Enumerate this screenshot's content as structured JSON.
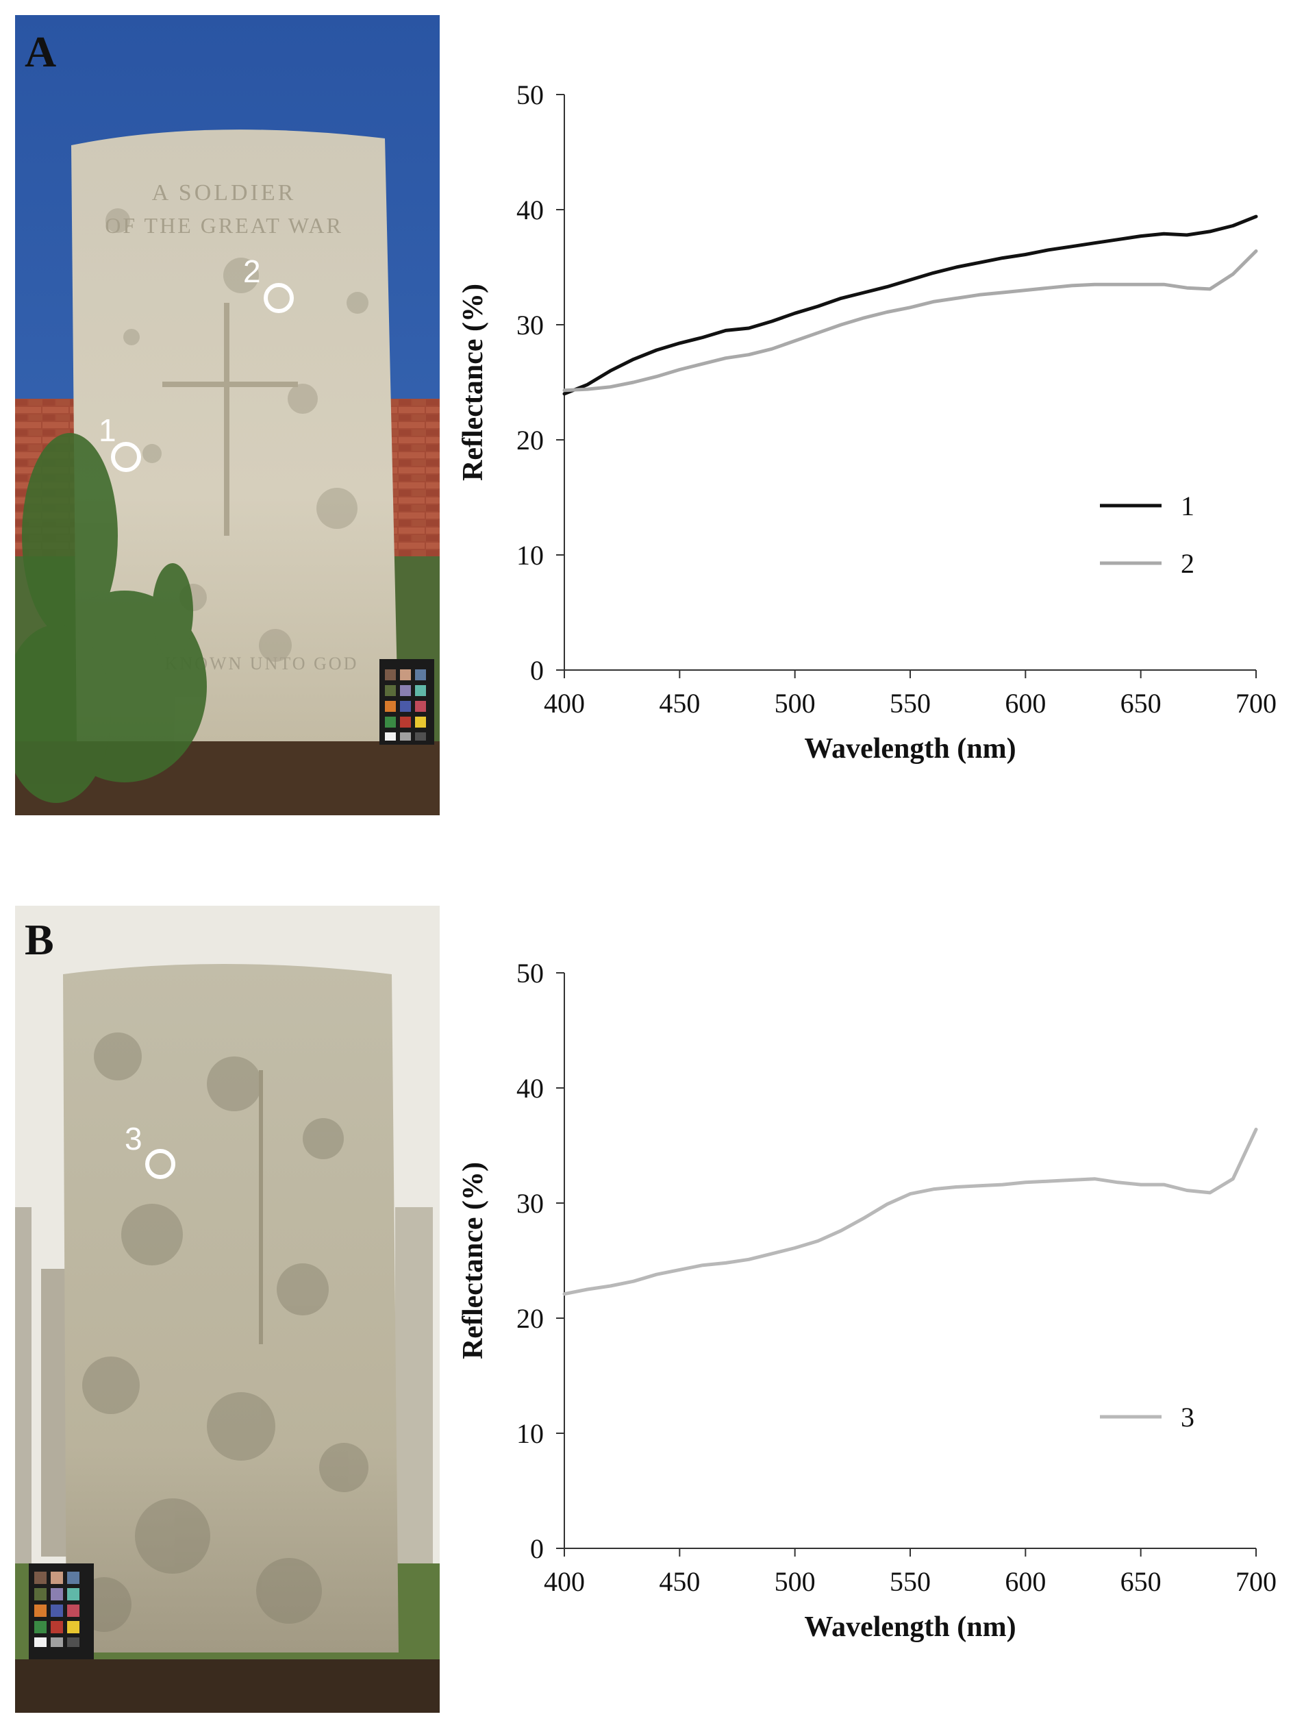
{
  "figure": {
    "panels": [
      {
        "label": "A",
        "photo": {
          "inscription": [
            "A SOLDIER",
            "OF THE GREAT WAR"
          ],
          "footer_inscription": "KNOWN UNTO GOD",
          "markers": [
            "1",
            "2"
          ],
          "sky_color": "#2f5aa6",
          "stone_color": "#cdc6b4",
          "wall_color": "#a24a36"
        }
      },
      {
        "label": "B",
        "photo": {
          "markers": [
            "3"
          ],
          "stone_color": "#bdb7a4",
          "background_color": "#e8e6df"
        }
      }
    ]
  },
  "chart_data": [
    {
      "type": "line",
      "xlabel": "Wavelength (nm)",
      "ylabel": "Reflectance (%)",
      "xlim": [
        400,
        700
      ],
      "ylim": [
        0,
        50
      ],
      "xticks": [
        "400",
        "450",
        "500",
        "550",
        "600",
        "650",
        "700"
      ],
      "yticks": [
        "0",
        "10",
        "20",
        "30",
        "40",
        "50"
      ],
      "legend_position": "lower-right",
      "grid": false,
      "series": [
        {
          "name": "1",
          "color": "#111111",
          "x": [
            400,
            410,
            420,
            430,
            440,
            450,
            460,
            470,
            480,
            490,
            500,
            510,
            520,
            530,
            540,
            550,
            560,
            570,
            580,
            590,
            600,
            610,
            620,
            630,
            640,
            650,
            660,
            670,
            680,
            690,
            700
          ],
          "y": [
            24.0,
            24.8,
            26.0,
            27.0,
            27.8,
            28.4,
            28.9,
            29.5,
            29.7,
            30.3,
            31.0,
            31.6,
            32.3,
            32.8,
            33.3,
            33.9,
            34.5,
            35.0,
            35.4,
            35.8,
            36.1,
            36.5,
            36.8,
            37.1,
            37.4,
            37.7,
            37.9,
            37.8,
            38.1,
            38.6,
            39.4
          ]
        },
        {
          "name": "2",
          "color": "#a9a9a9",
          "x": [
            400,
            410,
            420,
            430,
            440,
            450,
            460,
            470,
            480,
            490,
            500,
            510,
            520,
            530,
            540,
            550,
            560,
            570,
            580,
            590,
            600,
            610,
            620,
            630,
            640,
            650,
            660,
            670,
            680,
            690,
            700
          ],
          "y": [
            24.3,
            24.4,
            24.6,
            25.0,
            25.5,
            26.1,
            26.6,
            27.1,
            27.4,
            27.9,
            28.6,
            29.3,
            30.0,
            30.6,
            31.1,
            31.5,
            32.0,
            32.3,
            32.6,
            32.8,
            33.0,
            33.2,
            33.4,
            33.5,
            33.5,
            33.5,
            33.5,
            33.2,
            33.1,
            34.4,
            36.4
          ]
        }
      ]
    },
    {
      "type": "line",
      "xlabel": "Wavelength (nm)",
      "ylabel": "Reflectance (%)",
      "xlim": [
        400,
        700
      ],
      "ylim": [
        0,
        50
      ],
      "xticks": [
        "400",
        "450",
        "500",
        "550",
        "600",
        "650",
        "700"
      ],
      "yticks": [
        "0",
        "10",
        "20",
        "30",
        "40",
        "50"
      ],
      "legend_position": "lower-right",
      "grid": false,
      "series": [
        {
          "name": "3",
          "color": "#b8b8b8",
          "x": [
            400,
            410,
            420,
            430,
            440,
            450,
            460,
            470,
            480,
            490,
            500,
            510,
            520,
            530,
            540,
            550,
            560,
            570,
            580,
            590,
            600,
            610,
            620,
            630,
            640,
            650,
            660,
            670,
            680,
            690,
            700
          ],
          "y": [
            22.1,
            22.5,
            22.8,
            23.2,
            23.8,
            24.2,
            24.6,
            24.8,
            25.1,
            25.6,
            26.1,
            26.7,
            27.6,
            28.7,
            29.9,
            30.8,
            31.2,
            31.4,
            31.5,
            31.6,
            31.8,
            31.9,
            32.0,
            32.1,
            31.8,
            31.6,
            31.6,
            31.1,
            30.9,
            32.1,
            36.4
          ]
        }
      ]
    }
  ]
}
